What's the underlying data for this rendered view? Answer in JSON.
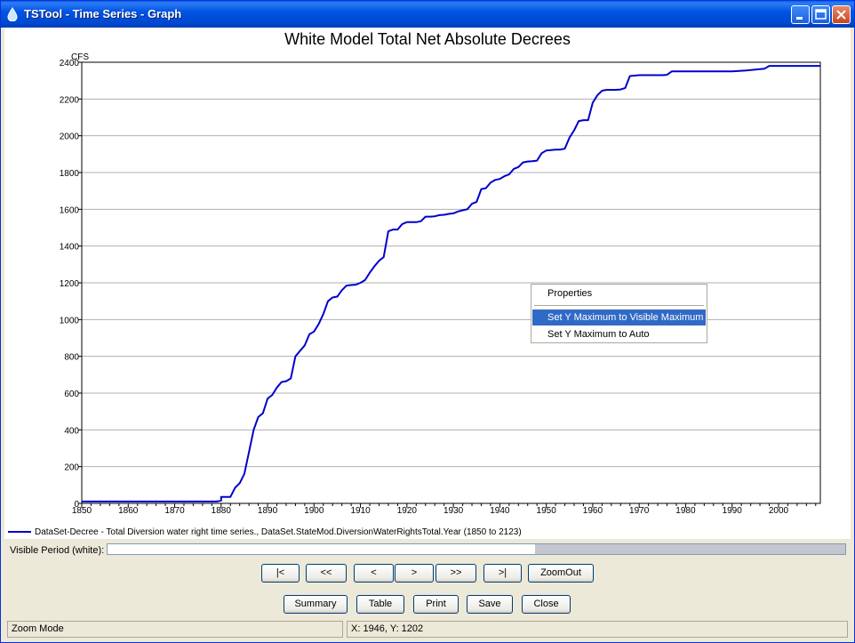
{
  "window": {
    "title": "TSTool - Time Series - Graph"
  },
  "chart_data": {
    "type": "line",
    "title": "White Model Total Net Absolute Decrees",
    "ylabel": "CFS",
    "xlabel": "",
    "xlim": [
      1850,
      2009
    ],
    "ylim": [
      0,
      2400
    ],
    "x_ticks": [
      1850,
      1860,
      1870,
      1880,
      1890,
      1900,
      1910,
      1920,
      1930,
      1940,
      1950,
      1960,
      1970,
      1980,
      1990,
      2000
    ],
    "y_ticks": [
      0,
      200,
      400,
      600,
      800,
      1000,
      1200,
      1400,
      1600,
      1800,
      2000,
      2200,
      2400
    ],
    "grid": "horizontal",
    "series": [
      {
        "name": "DataSet-Decree - Total Diversion water right time series., DataSet.StateMod.DiversionWaterRightsTotal.Year (1850 to 2123)",
        "color": "#0000cc",
        "x": [
          1850,
          1879,
          1880,
          1880,
          1882,
          1883,
          1884,
          1885,
          1886,
          1887,
          1888,
          1889,
          1890,
          1891,
          1892,
          1893,
          1894,
          1895,
          1896,
          1897,
          1898,
          1899,
          1900,
          1901,
          1902,
          1903,
          1904,
          1905,
          1906,
          1907,
          1908,
          1909,
          1910,
          1911,
          1912,
          1913,
          1914,
          1915,
          1916,
          1917,
          1918,
          1919,
          1920,
          1921,
          1922,
          1923,
          1924,
          1925,
          1926,
          1927,
          1928,
          1929,
          1930,
          1931,
          1932,
          1933,
          1934,
          1935,
          1936,
          1937,
          1938,
          1939,
          1940,
          1941,
          1942,
          1943,
          1944,
          1945,
          1946,
          1947,
          1948,
          1949,
          1950,
          1951,
          1952,
          1953,
          1954,
          1955,
          1956,
          1957,
          1958,
          1959,
          1960,
          1961,
          1962,
          1963,
          1964,
          1965,
          1966,
          1967,
          1968,
          1970,
          1972,
          1975,
          1976,
          1977,
          1980,
          1985,
          1990,
          1993,
          1995,
          1997,
          1998,
          2000,
          2005,
          2009
        ],
        "y": [
          10,
          10,
          15,
          35,
          35,
          85,
          110,
          160,
          280,
          400,
          470,
          490,
          570,
          590,
          630,
          660,
          665,
          680,
          800,
          830,
          860,
          920,
          935,
          975,
          1030,
          1100,
          1120,
          1125,
          1160,
          1185,
          1188,
          1190,
          1200,
          1215,
          1255,
          1290,
          1320,
          1340,
          1480,
          1490,
          1490,
          1520,
          1530,
          1530,
          1530,
          1535,
          1560,
          1560,
          1562,
          1568,
          1570,
          1575,
          1578,
          1588,
          1595,
          1600,
          1630,
          1640,
          1710,
          1715,
          1745,
          1760,
          1765,
          1780,
          1790,
          1820,
          1830,
          1855,
          1860,
          1862,
          1865,
          1905,
          1920,
          1922,
          1925,
          1925,
          1930,
          1990,
          2030,
          2080,
          2085,
          2085,
          2180,
          2220,
          2245,
          2250,
          2250,
          2250,
          2252,
          2260,
          2325,
          2330,
          2330,
          2330,
          2332,
          2350,
          2350,
          2350,
          2350,
          2355,
          2360,
          2365,
          2380,
          2380,
          2380,
          2380
        ]
      }
    ]
  },
  "legend": {
    "text": "DataSet-Decree - Total Diversion water right time series., DataSet.StateMod.DiversionWaterRightsTotal.Year (1850 to 2123)"
  },
  "context_menu": {
    "items": [
      {
        "label": "Properties"
      },
      {
        "label": "Set Y Maximum to Visible Maximum"
      },
      {
        "label": "Set Y Maximum to Auto"
      }
    ]
  },
  "visible_period": {
    "label": "Visible Period (white):",
    "visible_fraction": 0.58
  },
  "nav_buttons": {
    "first": "|<",
    "prev_page": "<<",
    "prev": "<",
    "next": ">",
    "next_page": ">>",
    "last": ">|",
    "zoom_out": "ZoomOut"
  },
  "action_buttons": {
    "summary": "Summary",
    "table": "Table",
    "print": "Print",
    "save": "Save",
    "close": "Close"
  },
  "status": {
    "mode": "Zoom Mode",
    "coords": "X: 1946, Y: 1202"
  }
}
